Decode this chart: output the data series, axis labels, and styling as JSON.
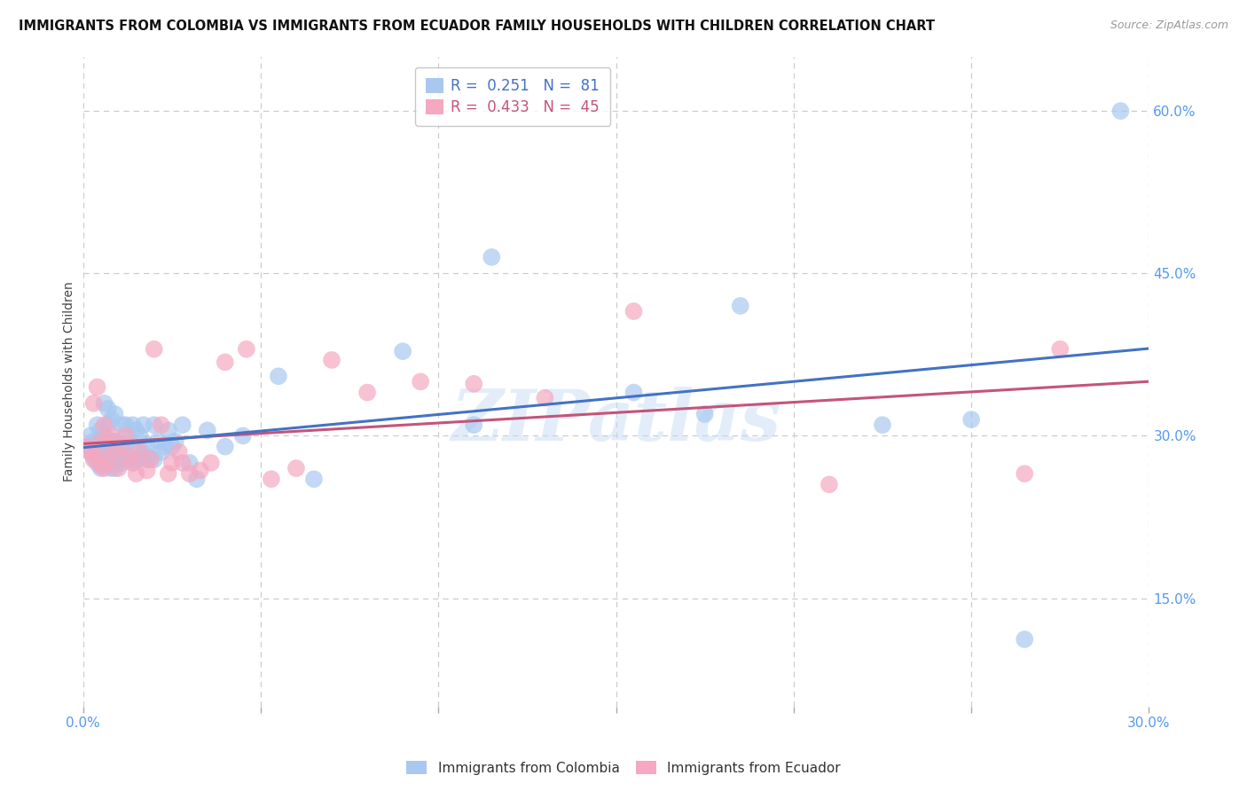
{
  "title": "IMMIGRANTS FROM COLOMBIA VS IMMIGRANTS FROM ECUADOR FAMILY HOUSEHOLDS WITH CHILDREN CORRELATION CHART",
  "source": "Source: ZipAtlas.com",
  "ylabel": "Family Households with Children",
  "xlim": [
    0.0,
    0.3
  ],
  "ylim": [
    0.05,
    0.65
  ],
  "xtick_pos": [
    0.0,
    0.05,
    0.1,
    0.15,
    0.2,
    0.25,
    0.3
  ],
  "xtick_labels": [
    "0.0%",
    "",
    "",
    "",
    "",
    "",
    "30.0%"
  ],
  "ytick_pos_right": [
    0.6,
    0.45,
    0.3,
    0.15
  ],
  "ytick_labels_right": [
    "60.0%",
    "45.0%",
    "30.0%",
    "15.0%"
  ],
  "colombia_R": 0.251,
  "colombia_N": 81,
  "ecuador_R": 0.433,
  "ecuador_N": 45,
  "colombia_color": "#A8C8F0",
  "ecuador_color": "#F5A8C0",
  "colombia_line_color": "#4472C4",
  "ecuador_line_color": "#C4547A",
  "background_color": "#FFFFFF",
  "grid_color": "#CCCCCC",
  "watermark": "ZIPatlas",
  "tick_label_color": "#5599EE",
  "colombia_x": [
    0.001,
    0.002,
    0.002,
    0.003,
    0.003,
    0.003,
    0.004,
    0.004,
    0.004,
    0.004,
    0.005,
    0.005,
    0.005,
    0.005,
    0.006,
    0.006,
    0.006,
    0.006,
    0.006,
    0.007,
    0.007,
    0.007,
    0.007,
    0.007,
    0.008,
    0.008,
    0.008,
    0.008,
    0.009,
    0.009,
    0.009,
    0.009,
    0.01,
    0.01,
    0.01,
    0.011,
    0.011,
    0.011,
    0.012,
    0.012,
    0.012,
    0.013,
    0.013,
    0.014,
    0.014,
    0.015,
    0.015,
    0.015,
    0.016,
    0.016,
    0.017,
    0.017,
    0.018,
    0.018,
    0.019,
    0.02,
    0.02,
    0.021,
    0.022,
    0.023,
    0.024,
    0.025,
    0.026,
    0.028,
    0.03,
    0.032,
    0.035,
    0.04,
    0.045,
    0.055,
    0.065,
    0.09,
    0.11,
    0.115,
    0.155,
    0.175,
    0.185,
    0.225,
    0.25,
    0.265,
    0.292
  ],
  "colombia_y": [
    0.29,
    0.285,
    0.3,
    0.29,
    0.28,
    0.295,
    0.275,
    0.285,
    0.295,
    0.31,
    0.27,
    0.28,
    0.295,
    0.305,
    0.275,
    0.285,
    0.295,
    0.3,
    0.33,
    0.278,
    0.285,
    0.295,
    0.31,
    0.325,
    0.27,
    0.28,
    0.295,
    0.315,
    0.27,
    0.28,
    0.295,
    0.32,
    0.275,
    0.285,
    0.295,
    0.275,
    0.288,
    0.31,
    0.278,
    0.292,
    0.31,
    0.28,
    0.295,
    0.275,
    0.31,
    0.278,
    0.29,
    0.305,
    0.28,
    0.3,
    0.285,
    0.31,
    0.278,
    0.292,
    0.28,
    0.278,
    0.31,
    0.295,
    0.285,
    0.29,
    0.305,
    0.29,
    0.295,
    0.31,
    0.275,
    0.26,
    0.305,
    0.29,
    0.3,
    0.355,
    0.26,
    0.378,
    0.31,
    0.465,
    0.34,
    0.32,
    0.42,
    0.31,
    0.315,
    0.112,
    0.6
  ],
  "ecuador_x": [
    0.001,
    0.002,
    0.003,
    0.003,
    0.004,
    0.004,
    0.005,
    0.005,
    0.006,
    0.006,
    0.007,
    0.007,
    0.008,
    0.009,
    0.01,
    0.011,
    0.012,
    0.013,
    0.014,
    0.015,
    0.016,
    0.018,
    0.019,
    0.02,
    0.022,
    0.024,
    0.025,
    0.027,
    0.028,
    0.03,
    0.033,
    0.036,
    0.04,
    0.046,
    0.053,
    0.06,
    0.07,
    0.08,
    0.095,
    0.11,
    0.13,
    0.155,
    0.21,
    0.265,
    0.275
  ],
  "ecuador_y": [
    0.29,
    0.285,
    0.278,
    0.33,
    0.28,
    0.345,
    0.272,
    0.295,
    0.27,
    0.31,
    0.278,
    0.295,
    0.3,
    0.285,
    0.27,
    0.29,
    0.3,
    0.28,
    0.275,
    0.265,
    0.285,
    0.268,
    0.278,
    0.38,
    0.31,
    0.265,
    0.275,
    0.285,
    0.275,
    0.265,
    0.268,
    0.275,
    0.368,
    0.38,
    0.26,
    0.27,
    0.37,
    0.34,
    0.35,
    0.348,
    0.335,
    0.415,
    0.255,
    0.265,
    0.38
  ]
}
